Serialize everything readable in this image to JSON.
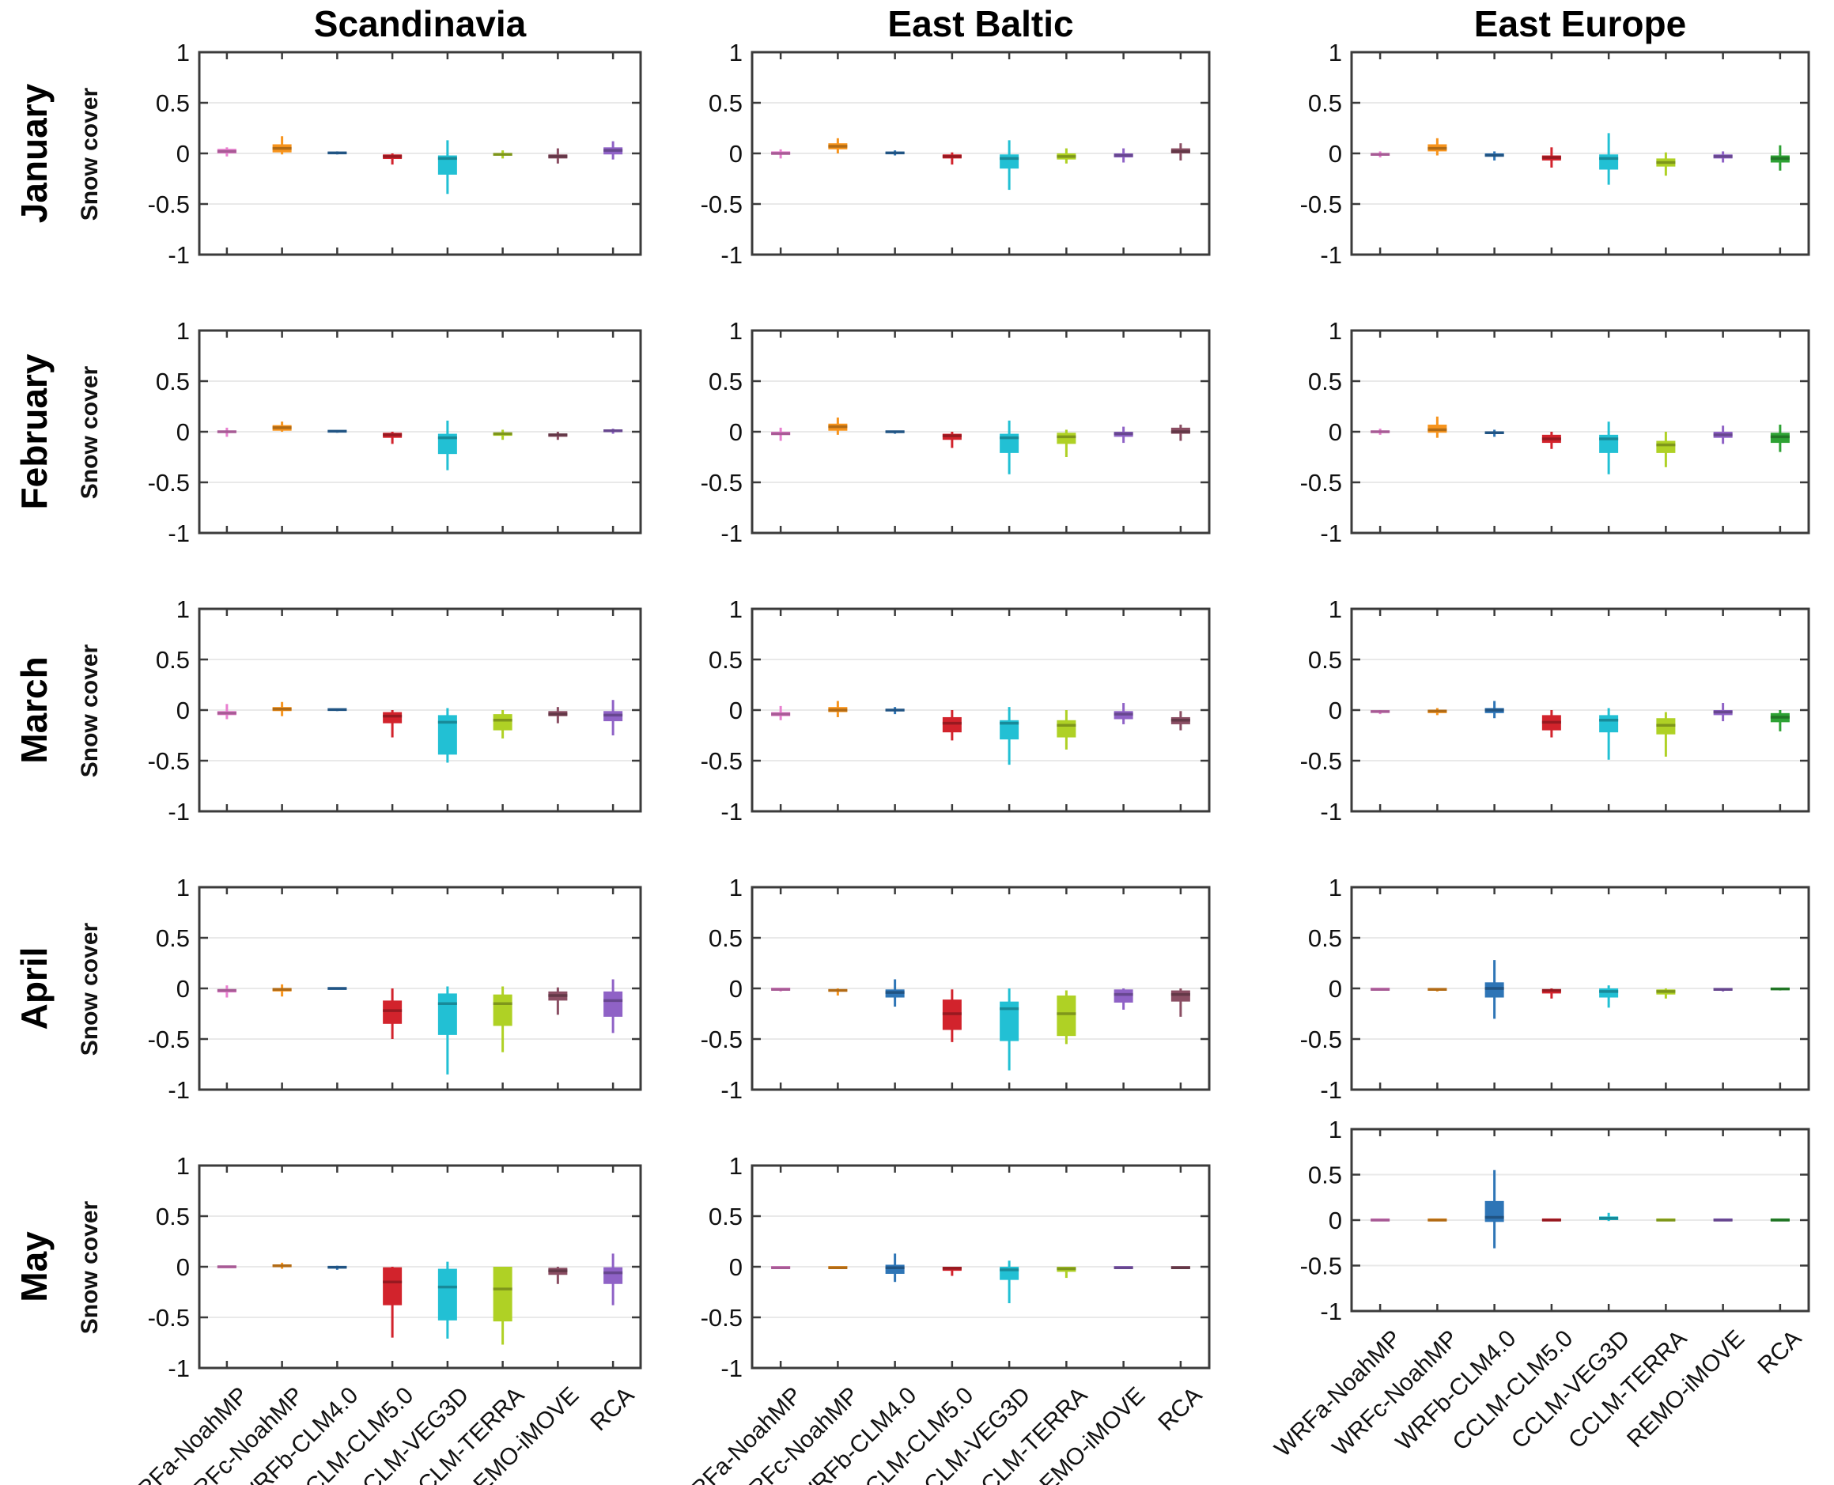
{
  "regions": [
    "Scandinavia",
    "East Baltic",
    "East Europe"
  ],
  "months": [
    "January",
    "February",
    "March",
    "April",
    "May"
  ],
  "models": [
    "WRFa-NoahMP",
    "WRFc-NoahMP",
    "WRFb-CLM4.0",
    "CCLM-CLM5.0",
    "CCLM-VEG3D",
    "CCLM-TERRA",
    "REMO-iMOVE",
    "RCA"
  ],
  "y_axis": {
    "label": "Snow cover",
    "ticks": [
      "1",
      "0.5",
      "0",
      "-0.5",
      "-1"
    ],
    "tick_values": [
      1,
      0.5,
      0,
      -0.5,
      -1
    ],
    "min": -1,
    "max": 1,
    "gridlines": [
      0.5,
      0,
      -0.5
    ]
  },
  "palette": {
    "pink": "#E87ECF",
    "orange": "#F7941D",
    "blue": "#2E75B6",
    "red": "#D2232C",
    "cyan": "#22C0D4",
    "yellowgreen": "#AFD125",
    "plum": "#8A4E63",
    "purple": "#8F62C6",
    "green": "#2EA234"
  },
  "chart_data": {
    "type": "boxplot",
    "value_format": "[whisker_low, q1, median, q3, whisker_high]",
    "column_color_keys": {
      "Scandinavia": [
        "pink",
        "orange",
        "blue",
        "red",
        "cyan",
        "yellowgreen",
        "plum",
        "purple"
      ],
      "East Baltic": [
        "pink",
        "orange",
        "blue",
        "red",
        "cyan",
        "yellowgreen",
        "purple",
        "plum"
      ],
      "East Europe": [
        "pink",
        "orange",
        "blue",
        "red",
        "cyan",
        "yellowgreen",
        "purple",
        "green"
      ]
    },
    "panels": [
      {
        "month": "January",
        "region": "Scandinavia",
        "colors": [
          "pink",
          "orange",
          "blue",
          "red",
          "cyan",
          "yellowgreen",
          "plum",
          "purple"
        ],
        "values": [
          [
            -0.03,
            0.0,
            0.02,
            0.045,
            0.06
          ],
          [
            -0.01,
            0.01,
            0.05,
            0.09,
            0.17
          ],
          [
            -0.01,
            0.0,
            0.005,
            0.01,
            0.02
          ],
          [
            -0.11,
            -0.055,
            -0.03,
            -0.01,
            0.0
          ],
          [
            -0.4,
            -0.21,
            -0.05,
            -0.02,
            0.13
          ],
          [
            -0.05,
            -0.02,
            -0.01,
            0.0,
            0.03
          ],
          [
            -0.1,
            -0.05,
            -0.03,
            -0.01,
            0.05
          ],
          [
            -0.06,
            -0.01,
            0.03,
            0.06,
            0.12
          ]
        ]
      },
      {
        "month": "January",
        "region": "East Baltic",
        "colors": [
          "pink",
          "orange",
          "blue",
          "red",
          "cyan",
          "yellowgreen",
          "purple",
          "plum"
        ],
        "values": [
          [
            -0.05,
            -0.01,
            0.0,
            0.02,
            0.04
          ],
          [
            0.0,
            0.04,
            0.07,
            0.1,
            0.15
          ],
          [
            -0.02,
            0.0,
            0.005,
            0.01,
            0.03
          ],
          [
            -0.11,
            -0.05,
            -0.03,
            -0.01,
            0.01
          ],
          [
            -0.36,
            -0.15,
            -0.05,
            -0.01,
            0.13
          ],
          [
            -0.1,
            -0.06,
            -0.03,
            0.0,
            0.05
          ],
          [
            -0.09,
            -0.04,
            -0.02,
            0.0,
            0.05
          ],
          [
            -0.07,
            0.0,
            0.02,
            0.05,
            0.1
          ]
        ]
      },
      {
        "month": "January",
        "region": "East Europe",
        "colors": [
          "pink",
          "orange",
          "blue",
          "red",
          "cyan",
          "yellowgreen",
          "purple",
          "green"
        ],
        "values": [
          [
            -0.04,
            -0.02,
            -0.01,
            0.0,
            0.02
          ],
          [
            -0.02,
            0.02,
            0.05,
            0.09,
            0.15
          ],
          [
            -0.07,
            -0.03,
            -0.02,
            0.0,
            0.02
          ],
          [
            -0.14,
            -0.07,
            -0.04,
            -0.02,
            0.06
          ],
          [
            -0.31,
            -0.16,
            -0.05,
            -0.01,
            0.2
          ],
          [
            -0.22,
            -0.13,
            -0.09,
            -0.05,
            0.01
          ],
          [
            -0.09,
            -0.05,
            -0.03,
            -0.01,
            0.02
          ],
          [
            -0.17,
            -0.09,
            -0.05,
            -0.02,
            0.08
          ]
        ]
      },
      {
        "month": "February",
        "region": "Scandinavia",
        "colors": [
          "pink",
          "orange",
          "blue",
          "red",
          "cyan",
          "yellowgreen",
          "plum",
          "purple"
        ],
        "values": [
          [
            -0.05,
            -0.01,
            0.0,
            0.01,
            0.04
          ],
          [
            0.0,
            0.01,
            0.04,
            0.065,
            0.1
          ],
          [
            -0.01,
            0.0,
            0.005,
            0.01,
            0.01
          ],
          [
            -0.12,
            -0.06,
            -0.03,
            -0.01,
            0.0
          ],
          [
            -0.38,
            -0.22,
            -0.06,
            -0.02,
            0.11
          ],
          [
            -0.08,
            -0.04,
            -0.02,
            -0.01,
            0.02
          ],
          [
            -0.08,
            -0.05,
            -0.03,
            -0.02,
            0.0
          ],
          [
            -0.02,
            0.0,
            0.01,
            0.02,
            0.03
          ]
        ]
      },
      {
        "month": "February",
        "region": "East Baltic",
        "colors": [
          "pink",
          "orange",
          "blue",
          "red",
          "cyan",
          "yellowgreen",
          "purple",
          "plum"
        ],
        "values": [
          [
            -0.09,
            -0.03,
            -0.02,
            0.0,
            0.04
          ],
          [
            -0.03,
            0.01,
            0.05,
            0.08,
            0.14
          ],
          [
            -0.02,
            -0.005,
            0.0,
            0.005,
            0.01
          ],
          [
            -0.16,
            -0.08,
            -0.04,
            -0.02,
            0.0
          ],
          [
            -0.42,
            -0.21,
            -0.06,
            -0.02,
            0.11
          ],
          [
            -0.25,
            -0.12,
            -0.05,
            -0.01,
            0.02
          ],
          [
            -0.11,
            -0.05,
            -0.02,
            0.0,
            0.05
          ],
          [
            -0.09,
            -0.02,
            0.0,
            0.04,
            0.07
          ]
        ]
      },
      {
        "month": "February",
        "region": "East Europe",
        "colors": [
          "pink",
          "orange",
          "blue",
          "red",
          "cyan",
          "yellowgreen",
          "purple",
          "green"
        ],
        "values": [
          [
            -0.03,
            -0.01,
            0.0,
            0.01,
            0.03
          ],
          [
            -0.06,
            -0.01,
            0.02,
            0.07,
            0.15
          ],
          [
            -0.05,
            -0.02,
            -0.01,
            0.0,
            0.02
          ],
          [
            -0.17,
            -0.11,
            -0.07,
            -0.03,
            0.0
          ],
          [
            -0.42,
            -0.21,
            -0.07,
            -0.03,
            0.1
          ],
          [
            -0.35,
            -0.21,
            -0.13,
            -0.09,
            0.0
          ],
          [
            -0.12,
            -0.06,
            -0.03,
            0.0,
            0.06
          ],
          [
            -0.2,
            -0.11,
            -0.05,
            -0.01,
            0.07
          ]
        ]
      },
      {
        "month": "March",
        "region": "Scandinavia",
        "colors": [
          "pink",
          "orange",
          "blue",
          "red",
          "cyan",
          "yellowgreen",
          "plum",
          "purple"
        ],
        "values": [
          [
            -0.09,
            -0.05,
            -0.03,
            -0.01,
            0.06
          ],
          [
            -0.06,
            -0.01,
            0.01,
            0.03,
            0.08
          ],
          [
            -0.01,
            0.0,
            0.005,
            0.01,
            0.01
          ],
          [
            -0.27,
            -0.13,
            -0.06,
            -0.02,
            0.0
          ],
          [
            -0.52,
            -0.44,
            -0.12,
            -0.05,
            0.02
          ],
          [
            -0.28,
            -0.2,
            -0.1,
            -0.04,
            0.0
          ],
          [
            -0.13,
            -0.06,
            -0.04,
            -0.01,
            0.03
          ],
          [
            -0.25,
            -0.11,
            -0.05,
            -0.01,
            0.1
          ]
        ]
      },
      {
        "month": "March",
        "region": "East Baltic",
        "colors": [
          "pink",
          "orange",
          "blue",
          "red",
          "cyan",
          "yellowgreen",
          "purple",
          "plum"
        ],
        "values": [
          [
            -0.1,
            -0.06,
            -0.04,
            -0.02,
            0.04
          ],
          [
            -0.07,
            -0.02,
            0.0,
            0.03,
            0.09
          ],
          [
            -0.04,
            -0.01,
            0.0,
            0.01,
            0.03
          ],
          [
            -0.3,
            -0.22,
            -0.13,
            -0.07,
            0.0
          ],
          [
            -0.54,
            -0.29,
            -0.13,
            -0.1,
            0.03
          ],
          [
            -0.39,
            -0.27,
            -0.15,
            -0.1,
            0.0
          ],
          [
            -0.14,
            -0.09,
            -0.04,
            -0.01,
            0.07
          ],
          [
            -0.2,
            -0.14,
            -0.1,
            -0.07,
            -0.01
          ]
        ]
      },
      {
        "month": "March",
        "region": "East Europe",
        "colors": [
          "pink",
          "orange",
          "blue",
          "red",
          "cyan",
          "yellowgreen",
          "purple",
          "green"
        ],
        "values": [
          [
            -0.04,
            -0.02,
            -0.015,
            -0.01,
            0.0
          ],
          [
            -0.05,
            -0.03,
            -0.01,
            0.0,
            0.02
          ],
          [
            -0.08,
            -0.03,
            0.0,
            0.02,
            0.09
          ],
          [
            -0.27,
            -0.2,
            -0.12,
            -0.05,
            0.0
          ],
          [
            -0.49,
            -0.22,
            -0.1,
            -0.05,
            0.02
          ],
          [
            -0.46,
            -0.24,
            -0.15,
            -0.08,
            -0.02
          ],
          [
            -0.11,
            -0.05,
            -0.02,
            0.0,
            0.07
          ],
          [
            -0.21,
            -0.12,
            -0.07,
            -0.03,
            0.0
          ]
        ]
      },
      {
        "month": "April",
        "region": "Scandinavia",
        "colors": [
          "pink",
          "orange",
          "blue",
          "red",
          "cyan",
          "yellowgreen",
          "plum",
          "purple"
        ],
        "values": [
          [
            -0.09,
            -0.04,
            -0.02,
            -0.01,
            0.03
          ],
          [
            -0.08,
            -0.03,
            -0.01,
            0.0,
            0.04
          ],
          [
            -0.01,
            -0.005,
            0.0,
            0.0,
            0.01
          ],
          [
            -0.5,
            -0.35,
            -0.22,
            -0.12,
            0.0
          ],
          [
            -0.85,
            -0.46,
            -0.15,
            -0.05,
            0.02
          ],
          [
            -0.63,
            -0.37,
            -0.15,
            -0.06,
            0.02
          ],
          [
            -0.26,
            -0.12,
            -0.07,
            -0.03,
            0.01
          ],
          [
            -0.44,
            -0.28,
            -0.12,
            -0.03,
            0.09
          ]
        ]
      },
      {
        "month": "April",
        "region": "East Baltic",
        "colors": [
          "pink",
          "orange",
          "blue",
          "red",
          "cyan",
          "yellowgreen",
          "purple",
          "plum"
        ],
        "values": [
          [
            -0.03,
            -0.01,
            -0.01,
            0.0,
            0.0
          ],
          [
            -0.07,
            -0.03,
            -0.02,
            -0.01,
            0.0
          ],
          [
            -0.18,
            -0.09,
            -0.04,
            -0.01,
            0.09
          ],
          [
            -0.53,
            -0.41,
            -0.25,
            -0.11,
            -0.01
          ],
          [
            -0.81,
            -0.52,
            -0.2,
            -0.13,
            0.0
          ],
          [
            -0.55,
            -0.47,
            -0.25,
            -0.07,
            -0.02
          ],
          [
            -0.21,
            -0.14,
            -0.06,
            -0.01,
            0.0
          ],
          [
            -0.28,
            -0.13,
            -0.06,
            -0.02,
            0.0
          ]
        ]
      },
      {
        "month": "April",
        "region": "East Europe",
        "colors": [
          "pink",
          "orange",
          "blue",
          "red",
          "cyan",
          "yellowgreen",
          "purple",
          "green"
        ],
        "values": [
          [
            -0.02,
            -0.01,
            -0.01,
            0.0,
            0.0
          ],
          [
            -0.03,
            -0.015,
            -0.01,
            0.0,
            0.0
          ],
          [
            -0.3,
            -0.09,
            0.0,
            0.06,
            0.28
          ],
          [
            -0.1,
            -0.05,
            -0.02,
            -0.01,
            0.0
          ],
          [
            -0.19,
            -0.09,
            -0.03,
            0.0,
            0.03
          ],
          [
            -0.1,
            -0.06,
            -0.03,
            -0.01,
            0.0
          ],
          [
            -0.03,
            -0.015,
            -0.01,
            0.0,
            0.0
          ],
          [
            -0.02,
            -0.01,
            -0.005,
            0.0,
            0.0
          ]
        ]
      },
      {
        "month": "May",
        "region": "Scandinavia",
        "colors": [
          "pink",
          "orange",
          "blue",
          "red",
          "cyan",
          "yellowgreen",
          "plum",
          "purple"
        ],
        "values": [
          [
            -0.01,
            -0.005,
            0.0,
            0.0,
            0.01
          ],
          [
            -0.02,
            0.0,
            0.01,
            0.02,
            0.04
          ],
          [
            -0.03,
            -0.01,
            -0.005,
            0.0,
            0.01
          ],
          [
            -0.7,
            -0.38,
            -0.15,
            -0.005,
            0.0
          ],
          [
            -0.71,
            -0.53,
            -0.2,
            -0.02,
            0.05
          ],
          [
            -0.77,
            -0.54,
            -0.22,
            0.0,
            0.0
          ],
          [
            -0.17,
            -0.08,
            -0.04,
            -0.01,
            0.0
          ],
          [
            -0.38,
            -0.17,
            -0.06,
            -0.005,
            0.13
          ]
        ]
      },
      {
        "month": "May",
        "region": "East Baltic",
        "colors": [
          "pink",
          "orange",
          "blue",
          "red",
          "cyan",
          "yellowgreen",
          "purple",
          "plum"
        ],
        "values": [
          [
            -0.02,
            -0.01,
            -0.01,
            0.0,
            0.0
          ],
          [
            -0.02,
            -0.01,
            -0.01,
            0.0,
            0.0
          ],
          [
            -0.15,
            -0.07,
            -0.01,
            0.02,
            0.13
          ],
          [
            -0.09,
            -0.04,
            -0.015,
            0.0,
            0.0
          ],
          [
            -0.36,
            -0.13,
            -0.03,
            0.0,
            0.06
          ],
          [
            -0.11,
            -0.05,
            -0.02,
            0.0,
            0.0
          ],
          [
            -0.02,
            -0.01,
            -0.01,
            0.0,
            0.0
          ],
          [
            -0.02,
            -0.01,
            -0.01,
            0.0,
            0.0
          ]
        ]
      },
      {
        "month": "May",
        "region": "East Europe",
        "colors": [
          "pink",
          "orange",
          "blue",
          "red",
          "cyan",
          "yellowgreen",
          "purple",
          "green"
        ],
        "values": [
          [
            -0.01,
            0.0,
            0.0,
            0.01,
            0.01
          ],
          [
            -0.01,
            0.0,
            0.0,
            0.01,
            0.01
          ],
          [
            -0.31,
            -0.02,
            0.03,
            0.21,
            0.55
          ],
          [
            -0.01,
            0.0,
            0.0,
            0.01,
            0.01
          ],
          [
            -0.01,
            0.0,
            0.02,
            0.04,
            0.08
          ],
          [
            -0.01,
            0.0,
            0.0,
            0.01,
            0.01
          ],
          [
            -0.01,
            0.0,
            0.0,
            0.01,
            0.01
          ],
          [
            -0.01,
            0.0,
            0.0,
            0.01,
            0.01
          ]
        ]
      }
    ]
  }
}
